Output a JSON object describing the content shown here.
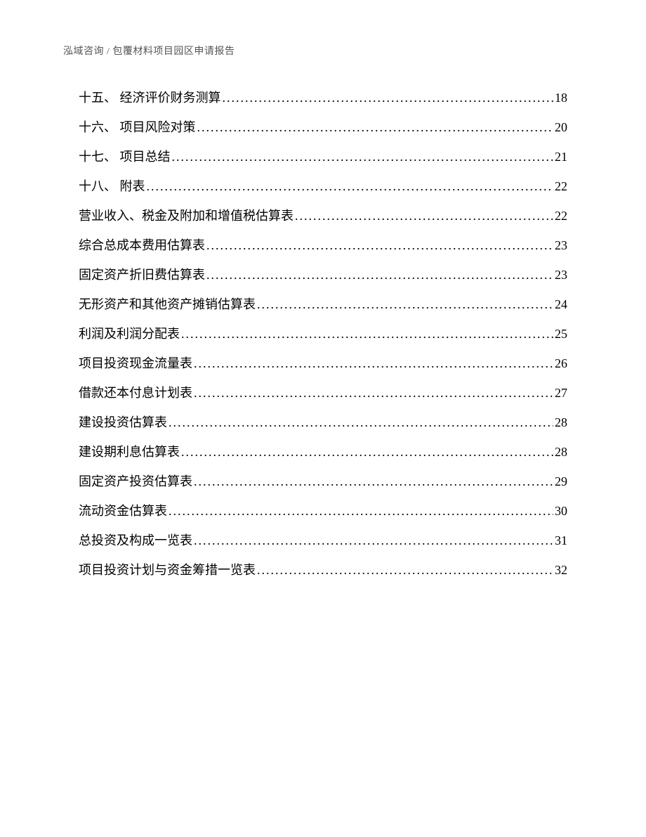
{
  "header": "泓域咨询  / 包覆材料项目园区申请报告",
  "toc": [
    {
      "label": "十五、 经济评价财务测算",
      "page": "18"
    },
    {
      "label": "十六、 项目风险对策",
      "page": "20"
    },
    {
      "label": "十七、 项目总结",
      "page": "21"
    },
    {
      "label": "十八、 附表",
      "page": "22"
    },
    {
      "label": "营业收入、税金及附加和增值税估算表",
      "page": "22"
    },
    {
      "label": "综合总成本费用估算表",
      "page": "23"
    },
    {
      "label": "固定资产折旧费估算表",
      "page": "23"
    },
    {
      "label": "无形资产和其他资产摊销估算表",
      "page": "24"
    },
    {
      "label": "利润及利润分配表",
      "page": "25"
    },
    {
      "label": "项目投资现金流量表",
      "page": "26"
    },
    {
      "label": "借款还本付息计划表",
      "page": "27"
    },
    {
      "label": "建设投资估算表",
      "page": "28"
    },
    {
      "label": "建设期利息估算表",
      "page": "28"
    },
    {
      "label": "固定资产投资估算表",
      "page": "29"
    },
    {
      "label": "流动资金估算表",
      "page": "30"
    },
    {
      "label": "总投资及构成一览表",
      "page": "31"
    },
    {
      "label": "项目投资计划与资金筹措一览表",
      "page": "32"
    }
  ]
}
